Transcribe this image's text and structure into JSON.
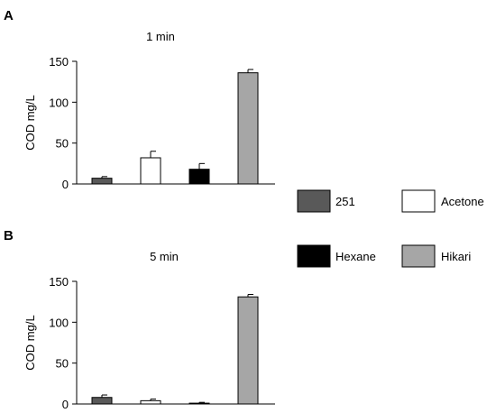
{
  "figure": {
    "panels": [
      {
        "letter": "A"
      },
      {
        "letter": "B"
      }
    ]
  },
  "legend": {
    "items": [
      {
        "label": "251",
        "color": "#595959"
      },
      {
        "label": "Acetone",
        "color": "#ffffff"
      },
      {
        "label": "Hexane",
        "color": "#000000"
      },
      {
        "label": "Hikari",
        "color": "#a6a6a6"
      }
    ]
  },
  "chart_data": [
    {
      "type": "bar",
      "title": "1 min",
      "ylabel": "COD  mg/L",
      "xlabel": "",
      "ylim": [
        0,
        150
      ],
      "yticks": [
        0,
        50,
        100,
        150
      ],
      "grid": false,
      "legend_placement": "right",
      "categories": [
        "251",
        "Acetone",
        "Hexane",
        "Hikari"
      ],
      "values": [
        7,
        32,
        18,
        136
      ],
      "errors": [
        2,
        8,
        7,
        4
      ],
      "colors": [
        "#595959",
        "#ffffff",
        "#000000",
        "#a6a6a6"
      ]
    },
    {
      "type": "bar",
      "title": "5 min",
      "ylabel": "COD  mg/L",
      "xlabel": "",
      "ylim": [
        0,
        150
      ],
      "yticks": [
        0,
        50,
        100,
        150
      ],
      "grid": false,
      "legend_placement": "right",
      "categories": [
        "251",
        "Acetone",
        "Hexane",
        "Hikari"
      ],
      "values": [
        8,
        4,
        1,
        131
      ],
      "errors": [
        3,
        2,
        1,
        3
      ],
      "colors": [
        "#595959",
        "#ffffff",
        "#000000",
        "#a6a6a6"
      ]
    }
  ]
}
